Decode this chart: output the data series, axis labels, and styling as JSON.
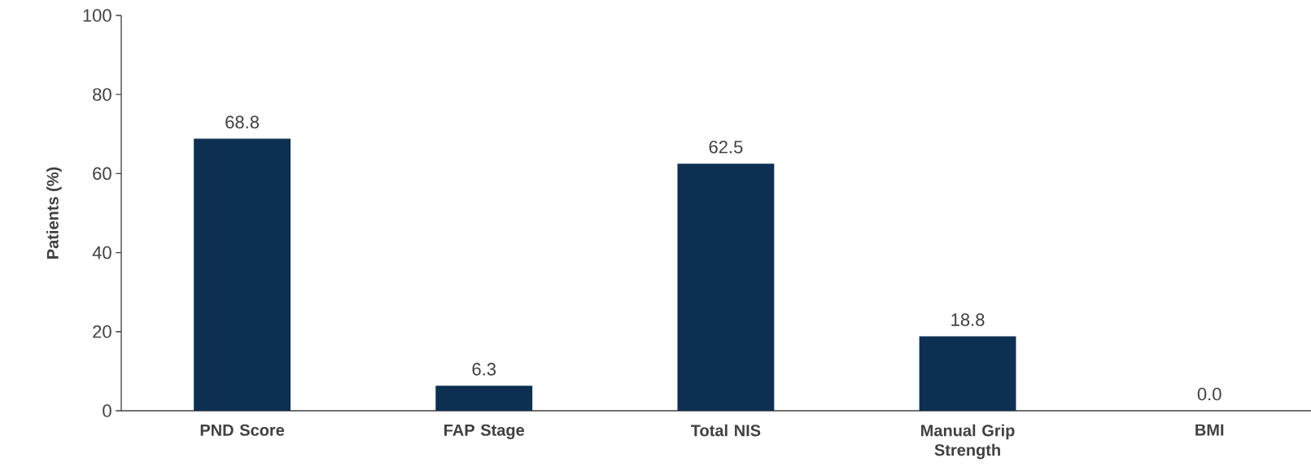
{
  "chart_data": {
    "type": "bar",
    "ylabel": "Patients (%)",
    "categories": [
      "PND Score",
      "FAP Stage",
      "Total NIS",
      "Manual Grip Strength",
      "BMI"
    ],
    "values": [
      68.8,
      6.3,
      62.5,
      18.8,
      0.0
    ],
    "value_labels": [
      "68.8",
      "6.3",
      "62.5",
      "18.8",
      "0.0"
    ],
    "color": "#0d2f52",
    "ylim": [
      0,
      100
    ],
    "yticks": [
      0,
      20,
      40,
      60,
      80,
      100
    ]
  }
}
